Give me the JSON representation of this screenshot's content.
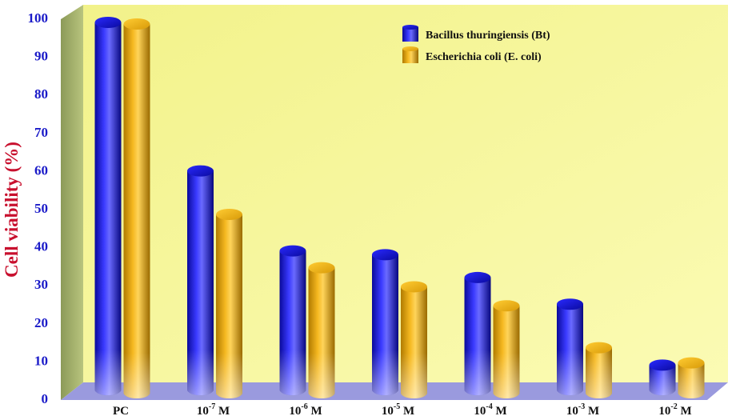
{
  "chart_data": {
    "type": "bar",
    "title": "",
    "xlabel": "",
    "ylabel": "Cell viability (%)",
    "ylim": [
      0,
      100
    ],
    "yticks": [
      "0",
      "10",
      "20",
      "30",
      "40",
      "50",
      "60",
      "70",
      "80",
      "90",
      "100"
    ],
    "categories": [
      {
        "base": "PC",
        "exp": "",
        "unit": ""
      },
      {
        "base": "10",
        "exp": "-7",
        "unit": " M"
      },
      {
        "base": "10",
        "exp": "-6",
        "unit": " M"
      },
      {
        "base": "10",
        "exp": "-5",
        "unit": " M"
      },
      {
        "base": "10",
        "exp": "-4",
        "unit": " M"
      },
      {
        "base": "10",
        "exp": "-3",
        "unit": " M"
      },
      {
        "base": "10",
        "exp": "-2",
        "unit": " M"
      }
    ],
    "series": [
      {
        "name": "Bacillus thuringiensis (Bt)",
        "values": [
          100,
          61,
          40,
          39,
          33,
          26,
          10
        ],
        "color": "#1a1aff"
      },
      {
        "name": "Escherichia coli (E. coli)",
        "values": [
          100,
          50,
          36,
          31,
          26,
          15,
          11
        ],
        "color": "#f0b010"
      }
    ],
    "grid": false,
    "legend": "top-right",
    "style": "3d-cylinder",
    "colors": {
      "back_wall": "#f7f79a",
      "side_wall": "#9fae6a",
      "floor": "#9a9ade",
      "tick_label": "#1a1ac8",
      "ylabel": "#c8102e"
    }
  }
}
